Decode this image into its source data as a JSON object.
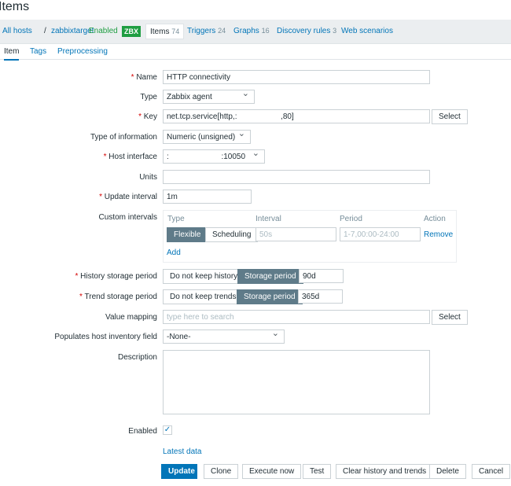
{
  "page_title": "Items",
  "nav": {
    "all_hosts": "All hosts",
    "sep": "/",
    "host": "zabbixtarget",
    "status": "Enabled",
    "zbx": "ZBX",
    "items": "Items",
    "items_count": "74",
    "triggers": "Triggers",
    "triggers_count": "24",
    "graphs": "Graphs",
    "graphs_count": "16",
    "discovery": "Discovery rules",
    "discovery_count": "3",
    "web": "Web scenarios"
  },
  "tabs": [
    "Item",
    "Tags",
    "Preprocessing"
  ],
  "form": {
    "name_label": "Name",
    "name_value": "HTTP connectivity",
    "type_label": "Type",
    "type_value": "Zabbix agent",
    "key_label": "Key",
    "key_value": "net.tcp.service[http,:                    ,80]",
    "select": "Select",
    "type_info_label": "Type of information",
    "type_info_value": "Numeric (unsigned)",
    "host_interface_label": "Host interface",
    "host_interface_value": ":                        :10050",
    "units_label": "Units",
    "units_value": "",
    "update_label": "Update interval",
    "update_value": "1m",
    "custom_label": "Custom intervals",
    "custom": {
      "col_type": "Type",
      "col_interval": "Interval",
      "col_period": "Period",
      "col_action": "Action",
      "flexible": "Flexible",
      "scheduling": "Scheduling",
      "interval_ph": "50s",
      "period_ph": "1-7,00:00-24:00",
      "remove": "Remove",
      "add": "Add"
    },
    "history_label": "History storage period",
    "history_off": "Do not keep history",
    "history_on": "Storage period",
    "history_value": "90d",
    "trend_label": "Trend storage period",
    "trend_off": "Do not keep trends",
    "trend_on": "Storage period",
    "trend_value": "365d",
    "valuemap_label": "Value mapping",
    "valuemap_ph": "type here to search",
    "inventory_label": "Populates host inventory field",
    "inventory_value": "-None-",
    "description_label": "Description",
    "enabled_label": "Enabled",
    "enabled": true,
    "latest_data": "Latest data"
  },
  "buttons": {
    "update": "Update",
    "clone": "Clone",
    "execute": "Execute now",
    "test": "Test",
    "clear": "Clear history and trends",
    "delete": "Delete",
    "cancel": "Cancel"
  },
  "colors": {
    "accent": "#0275b8",
    "enabled": "#1f9e42",
    "segment_active": "#5f7b89"
  }
}
